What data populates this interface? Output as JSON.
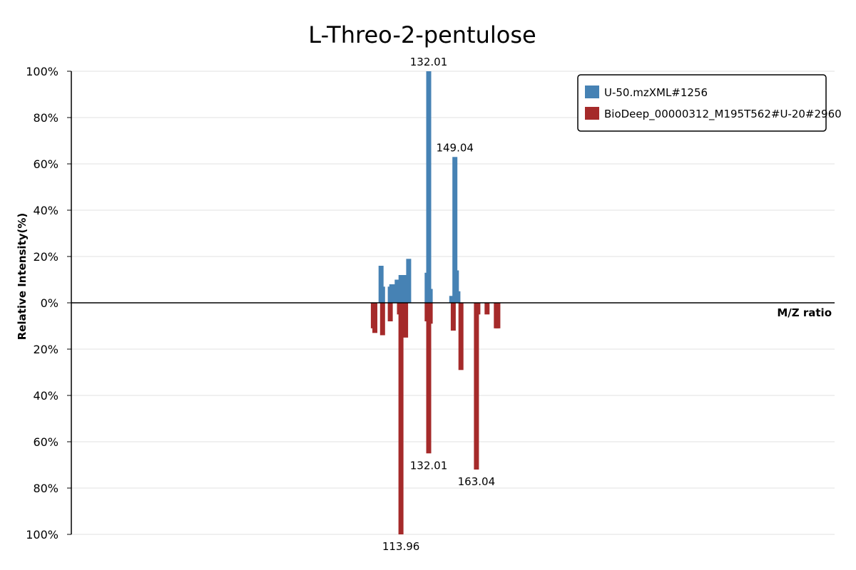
{
  "chart_data": {
    "type": "bar",
    "title": "L-Threo-2-pentulose",
    "xlabel": "M/Z ratio",
    "ylabel": "Relative Intensity(%)",
    "ylim": [
      -100,
      100
    ],
    "y_ticks": [
      "100%",
      "80%",
      "60%",
      "40%",
      "20%",
      "0%",
      "20%",
      "40%",
      "60%",
      "80%",
      "100%"
    ],
    "grid": true,
    "legend_position": "top-right",
    "series": [
      {
        "name": "U-50.mzXML#1256",
        "color": "#4682b4",
        "direction": "up",
        "x": [
          101.0,
          102.0,
          107.0,
          108.0,
          111.0,
          111.5,
          112.0,
          114.0,
          116.0,
          117.0,
          119.0,
          131.0,
          132.01,
          133.0,
          147.0,
          149.04,
          150.0,
          151.0
        ],
        "values": [
          16,
          7,
          7,
          8,
          8,
          10,
          9,
          12,
          12,
          5,
          19,
          13,
          100,
          6,
          3,
          63,
          14,
          5
        ]
      },
      {
        "name": "BioDeep_00000312_M195T562#U-20#2960",
        "color": "#a52a2a",
        "direction": "down",
        "x": [
          96.0,
          97.0,
          102.0,
          107.0,
          113.0,
          113.96,
          117.0,
          131.0,
          132.01,
          133.0,
          148.0,
          153.0,
          163.04,
          164.0,
          170.0,
          176.0,
          177.0
        ],
        "values": [
          11,
          13,
          14,
          8,
          5,
          100,
          15,
          8,
          65,
          9,
          12,
          29,
          72,
          5,
          5,
          11,
          11
        ]
      }
    ],
    "peak_labels": {
      "top": [
        "132.01",
        "149.04"
      ],
      "bottom": [
        "113.96",
        "132.01",
        "163.04"
      ]
    }
  }
}
